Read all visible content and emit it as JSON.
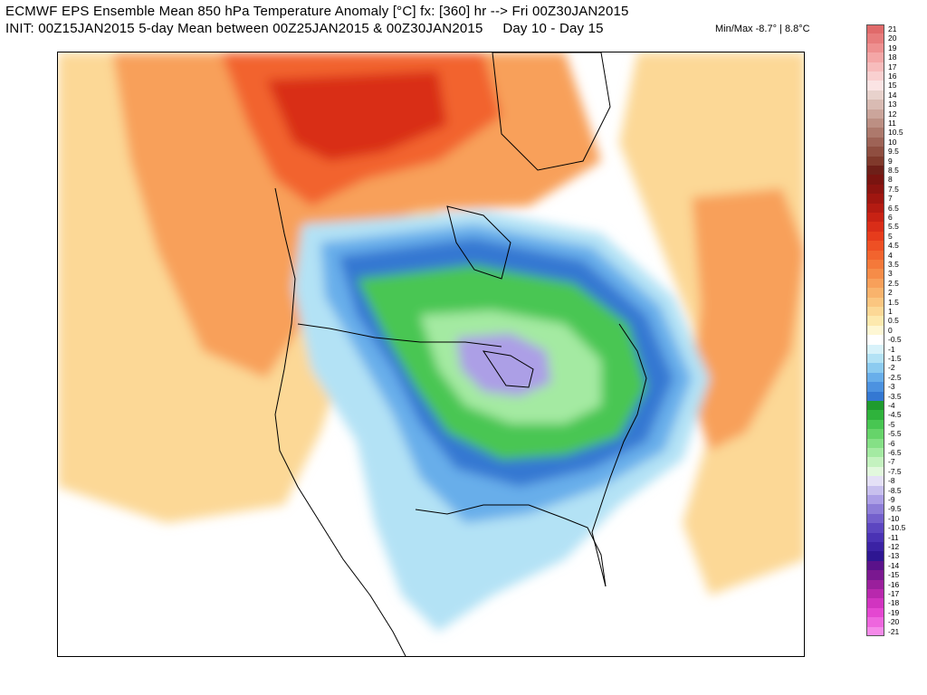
{
  "header": {
    "line1": "ECMWF EPS Ensemble Mean 850 hPa Temperature Anomaly [°C] fx: [360] hr --> Fri 00Z30JAN2015",
    "line2": "INIT: 00Z15JAN2015 5-day Mean between 00Z25JAN2015 & 00Z30JAN2015     Day 10 - Day 15",
    "minmax": "Min/Max -8.7° | 8.8°C"
  },
  "colorbar": [
    {
      "label": "21",
      "color": "#e06a6a"
    },
    {
      "label": "20",
      "color": "#e77c7c"
    },
    {
      "label": "19",
      "color": "#ee9090"
    },
    {
      "label": "18",
      "color": "#f4a7a7"
    },
    {
      "label": "17",
      "color": "#f7bcbc"
    },
    {
      "label": "16",
      "color": "#f9d0d0"
    },
    {
      "label": "15",
      "color": "#fbe4e4"
    },
    {
      "label": "14",
      "color": "#e8d2cc"
    },
    {
      "label": "13",
      "color": "#d9bbb3"
    },
    {
      "label": "12",
      "color": "#cba59b"
    },
    {
      "label": "11",
      "color": "#bc8f83"
    },
    {
      "label": "10.5",
      "color": "#ad796c"
    },
    {
      "label": "10",
      "color": "#9e6356"
    },
    {
      "label": "9.5",
      "color": "#8f4e40"
    },
    {
      "label": "9",
      "color": "#80392b"
    },
    {
      "label": "8.5",
      "color": "#6e1f18"
    },
    {
      "label": "8",
      "color": "#7a1410"
    },
    {
      "label": "7.5",
      "color": "#8c1410"
    },
    {
      "label": "7",
      "color": "#a01610"
    },
    {
      "label": "6.5",
      "color": "#b41b12"
    },
    {
      "label": "6",
      "color": "#c82214"
    },
    {
      "label": "5.5",
      "color": "#d92d18"
    },
    {
      "label": "5",
      "color": "#e63c1c"
    },
    {
      "label": "4.5",
      "color": "#ee5024"
    },
    {
      "label": "4",
      "color": "#f2642e"
    },
    {
      "label": "3.5",
      "color": "#f4793a"
    },
    {
      "label": "3",
      "color": "#f68c48"
    },
    {
      "label": "2.5",
      "color": "#f8a05a"
    },
    {
      "label": "2",
      "color": "#f9b36c"
    },
    {
      "label": "1.5",
      "color": "#fbc680"
    },
    {
      "label": "1",
      "color": "#fcd896"
    },
    {
      "label": "0.5",
      "color": "#fde9ae"
    },
    {
      "label": "0",
      "color": "#fef7d4"
    },
    {
      "label": "-0.5",
      "color": "#ffffff"
    },
    {
      "label": "-1",
      "color": "#d8f2fa"
    },
    {
      "label": "-1.5",
      "color": "#b3e2f5"
    },
    {
      "label": "-2",
      "color": "#8ccbf0"
    },
    {
      "label": "-2.5",
      "color": "#68aeea"
    },
    {
      "label": "-3",
      "color": "#4c92e0"
    },
    {
      "label": "-3.5",
      "color": "#3478d2"
    },
    {
      "label": "-4",
      "color": "#1f9b2e"
    },
    {
      "label": "-4.5",
      "color": "#2fb33c"
    },
    {
      "label": "-5",
      "color": "#48c652"
    },
    {
      "label": "-5.5",
      "color": "#66d46a"
    },
    {
      "label": "-6",
      "color": "#85e086"
    },
    {
      "label": "-6.5",
      "color": "#a4eaa2"
    },
    {
      "label": "-7",
      "color": "#c4f2bf"
    },
    {
      "label": "-7.5",
      "color": "#e2f8dd"
    },
    {
      "label": "-8",
      "color": "#e4e0f6"
    },
    {
      "label": "-8.5",
      "color": "#c8c0ee"
    },
    {
      "label": "-9",
      "color": "#ac9fe6"
    },
    {
      "label": "-9.5",
      "color": "#8e7ed8"
    },
    {
      "label": "-10",
      "color": "#7460cc"
    },
    {
      "label": "-10.5",
      "color": "#5c46c0"
    },
    {
      "label": "-11",
      "color": "#4a32b4"
    },
    {
      "label": "-12",
      "color": "#3b22a4"
    },
    {
      "label": "-13",
      "color": "#2e1692"
    },
    {
      "label": "-14",
      "color": "#5a128a"
    },
    {
      "label": "-15",
      "color": "#7a1890"
    },
    {
      "label": "-16",
      "color": "#9a1f9c"
    },
    {
      "label": "-17",
      "color": "#b828ad"
    },
    {
      "label": "-18",
      "color": "#d134c0"
    },
    {
      "label": "-19",
      "color": "#e447d1"
    },
    {
      "label": "-20",
      "color": "#ee66de"
    },
    {
      "label": "-21",
      "color": "#f58ae9"
    }
  ],
  "colors": {
    "warm_outer": "#fcd896",
    "warm_mid": "#f8a05a",
    "warm_strong": "#f2642e",
    "warm_peak": "#d92d18",
    "neutral": "#ffffff",
    "cool_light": "#b3e2f5",
    "cool_mid": "#68aeea",
    "cool_strong": "#3478d2",
    "cold_green": "#48c652",
    "cold_green_light": "#a4eaa2",
    "cold_core": "#ac9fe6"
  }
}
